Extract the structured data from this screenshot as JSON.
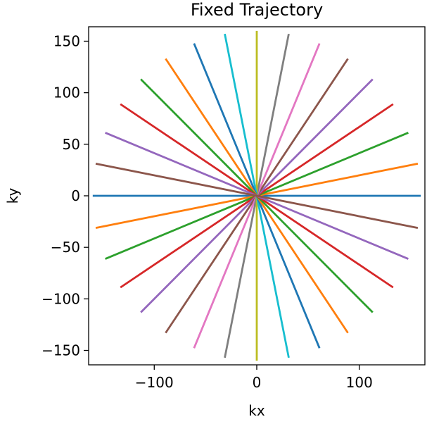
{
  "chart_data": {
    "type": "line",
    "title": "Fixed Trajectory",
    "xlabel": "kx",
    "ylabel": "ky",
    "xlim": [
      -164,
      164
    ],
    "ylim": [
      -164,
      164
    ],
    "xticks": [
      {
        "value": -100,
        "label": "−100"
      },
      {
        "value": 0,
        "label": "0"
      },
      {
        "value": 100,
        "label": "100"
      }
    ],
    "yticks": [
      {
        "value": 150,
        "label": "150"
      },
      {
        "value": 100,
        "label": "100"
      },
      {
        "value": 50,
        "label": "50"
      },
      {
        "value": 0,
        "label": "0"
      },
      {
        "value": -50,
        "label": "−50"
      },
      {
        "value": -100,
        "label": "−100"
      },
      {
        "value": -150,
        "label": "−150"
      }
    ],
    "grid": false,
    "legend": false,
    "series": [
      {
        "color": "#1f77b4",
        "x": [
          -160,
          160
        ],
        "y": [
          0,
          0
        ]
      },
      {
        "color": "#ff7f0e",
        "x": [
          -157.1,
          157.1
        ],
        "y": [
          -31.2,
          31.2
        ]
      },
      {
        "color": "#2ca02c",
        "x": [
          -147.8,
          147.8
        ],
        "y": [
          -61.2,
          61.2
        ]
      },
      {
        "color": "#d62728",
        "x": [
          -133.0,
          133.0
        ],
        "y": [
          -88.9,
          88.9
        ]
      },
      {
        "color": "#9467bd",
        "x": [
          -113.1,
          113.1
        ],
        "y": [
          -113.1,
          113.1
        ]
      },
      {
        "color": "#8c564b",
        "x": [
          -88.9,
          88.9
        ],
        "y": [
          -133.0,
          133.0
        ]
      },
      {
        "color": "#e377c2",
        "x": [
          -61.2,
          61.2
        ],
        "y": [
          -147.8,
          147.8
        ]
      },
      {
        "color": "#7f7f7f",
        "x": [
          -31.2,
          31.2
        ],
        "y": [
          -157.1,
          157.1
        ]
      },
      {
        "color": "#bcbd22",
        "x": [
          0,
          0
        ],
        "y": [
          -160,
          160
        ]
      },
      {
        "color": "#17becf",
        "x": [
          31.2,
          -31.2
        ],
        "y": [
          -157.1,
          157.1
        ]
      },
      {
        "color": "#1f77b4",
        "x": [
          61.2,
          -61.2
        ],
        "y": [
          -147.8,
          147.8
        ]
      },
      {
        "color": "#ff7f0e",
        "x": [
          88.9,
          -88.9
        ],
        "y": [
          -133.0,
          133.0
        ]
      },
      {
        "color": "#2ca02c",
        "x": [
          113.1,
          -113.1
        ],
        "y": [
          -113.1,
          113.1
        ]
      },
      {
        "color": "#d62728",
        "x": [
          133.0,
          -133.0
        ],
        "y": [
          -88.9,
          88.9
        ]
      },
      {
        "color": "#9467bd",
        "x": [
          147.8,
          -147.8
        ],
        "y": [
          -61.2,
          61.2
        ]
      },
      {
        "color": "#8c564b",
        "x": [
          157.1,
          -157.1
        ],
        "y": [
          -31.2,
          31.2
        ]
      }
    ]
  }
}
